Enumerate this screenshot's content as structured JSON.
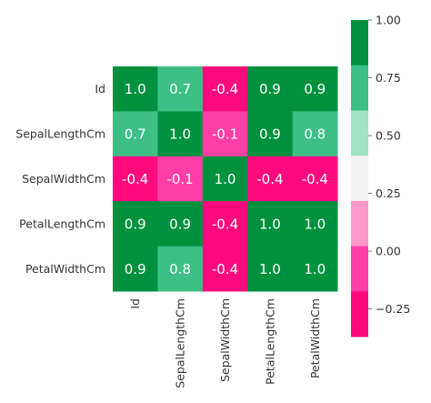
{
  "chart_data": {
    "type": "heatmap",
    "row_labels": [
      "Id",
      "SepalLengthCm",
      "SepalWidthCm",
      "PetalLengthCm",
      "PetalWidthCm"
    ],
    "col_labels": [
      "Id",
      "SepalLengthCm",
      "SepalWidthCm",
      "PetalLengthCm",
      "PetalWidthCm"
    ],
    "values": [
      [
        1.0,
        0.7,
        -0.4,
        0.9,
        0.9
      ],
      [
        0.7,
        1.0,
        -0.1,
        0.9,
        0.8
      ],
      [
        -0.4,
        -0.1,
        1.0,
        -0.4,
        -0.4
      ],
      [
        0.9,
        0.9,
        -0.4,
        1.0,
        1.0
      ],
      [
        0.9,
        0.8,
        -0.4,
        1.0,
        1.0
      ]
    ],
    "cell_labels": [
      [
        "1.0",
        "0.7",
        "-0.4",
        "0.9",
        "0.9"
      ],
      [
        "0.7",
        "1.0",
        "-0.1",
        "0.9",
        "0.8"
      ],
      [
        "-0.4",
        "-0.1",
        "1.0",
        "-0.4",
        "-0.4"
      ],
      [
        "0.9",
        "0.9",
        "-0.4",
        "1.0",
        "1.0"
      ],
      [
        "0.9",
        "0.8",
        "-0.4",
        "1.0",
        "1.0"
      ]
    ],
    "colorbar": {
      "vmin": -0.37,
      "vmax": 1.0,
      "ticks": [
        1.0,
        0.75,
        0.5,
        0.25,
        0.0,
        -0.25
      ],
      "tick_labels": [
        "1.00",
        "0.75",
        "0.50",
        "0.25",
        "0.00",
        "−0.25"
      ],
      "colors_top_to_bottom": [
        "#00913f",
        "#3dbf86",
        "#a2e2c5",
        "#f2f2f2",
        "#ff98cb",
        "#ff3ea6",
        "#ff0a7e"
      ]
    },
    "colors": {
      "cell_text": "#ffffff",
      "label_text": "#333333"
    }
  }
}
